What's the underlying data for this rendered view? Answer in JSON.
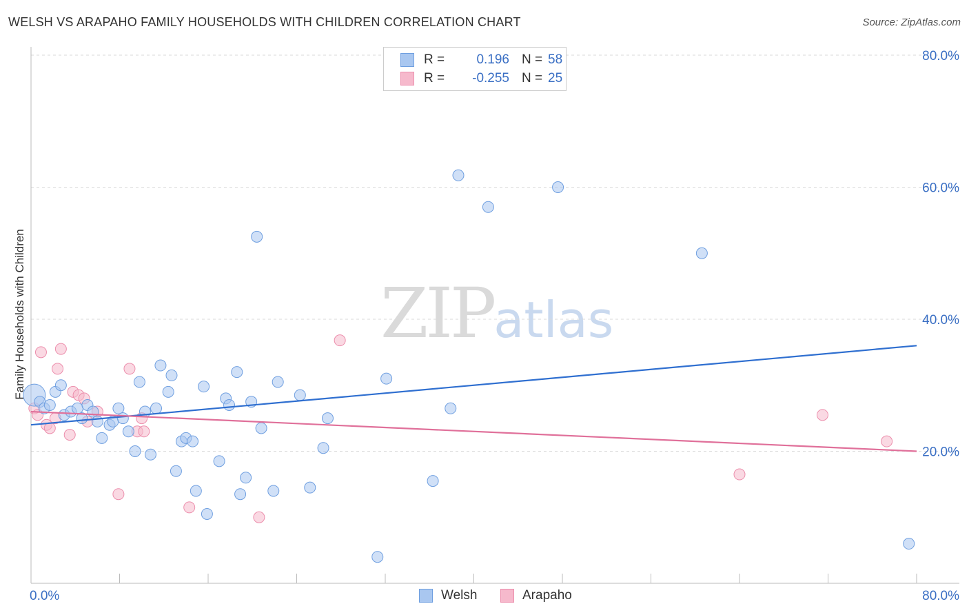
{
  "header": {
    "title": "WELSH VS ARAPAHO FAMILY HOUSEHOLDS WITH CHILDREN CORRELATION CHART",
    "source": "Source: ZipAtlas.com"
  },
  "watermark": {
    "zip": "ZIP",
    "atlas": "atlas"
  },
  "colors": {
    "welsh_fill": "#a9c7f0",
    "welsh_stroke": "#6f9fe0",
    "welsh_line": "#2f6fd0",
    "arapaho_fill": "#f6b9cc",
    "arapaho_stroke": "#ec8eac",
    "arapaho_line": "#e0709a",
    "axis_label": "#3a6fc4",
    "grid": "#d9d9d9"
  },
  "legend": {
    "rows": [
      {
        "r_label": "R = ",
        "r_value": "0.196",
        "n_label": "N = ",
        "n_value": "58"
      },
      {
        "r_label": "R = ",
        "r_value": "-0.255",
        "n_label": "N = ",
        "n_value": "25"
      }
    ]
  },
  "bottom_legend": {
    "welsh": "Welsh",
    "arapaho": "Arapaho"
  },
  "chart_data": {
    "type": "scatter",
    "title": "WELSH VS ARAPAHO FAMILY HOUSEHOLDS WITH CHILDREN CORRELATION CHART",
    "xlabel": "",
    "ylabel": "Family Households with Children",
    "xlim": [
      0,
      80
    ],
    "ylim": [
      0,
      80
    ],
    "x_tick_labels": [
      "0.0%",
      "80.0%"
    ],
    "y_tick_labels": [
      "20.0%",
      "40.0%",
      "60.0%",
      "80.0%"
    ],
    "y_ticks": [
      20,
      40,
      60,
      80
    ],
    "x_ticks": [
      0,
      8,
      16,
      24,
      32,
      40,
      48,
      56,
      64,
      72,
      80
    ],
    "grid": true,
    "legend_position": "top-center",
    "series": [
      {
        "name": "Welsh",
        "trend": {
          "x0": 0,
          "y0": 24.0,
          "x1": 80,
          "y1": 36.0
        },
        "points": [
          {
            "x": 0.3,
            "y": 28.5,
            "big": true
          },
          {
            "x": 0.8,
            "y": 27.5
          },
          {
            "x": 1.2,
            "y": 26.5
          },
          {
            "x": 1.7,
            "y": 27.0
          },
          {
            "x": 2.2,
            "y": 29.0
          },
          {
            "x": 2.7,
            "y": 30.0
          },
          {
            "x": 3.0,
            "y": 25.5
          },
          {
            "x": 3.6,
            "y": 26.0
          },
          {
            "x": 4.2,
            "y": 26.5
          },
          {
            "x": 4.6,
            "y": 25.0
          },
          {
            "x": 5.1,
            "y": 27.0
          },
          {
            "x": 5.6,
            "y": 26.0
          },
          {
            "x": 6.0,
            "y": 24.5
          },
          {
            "x": 6.4,
            "y": 22.0
          },
          {
            "x": 7.1,
            "y": 24.0
          },
          {
            "x": 7.4,
            "y": 24.5
          },
          {
            "x": 7.9,
            "y": 26.5
          },
          {
            "x": 8.3,
            "y": 25.0
          },
          {
            "x": 8.8,
            "y": 23.0
          },
          {
            "x": 9.4,
            "y": 20.0
          },
          {
            "x": 9.8,
            "y": 30.5
          },
          {
            "x": 10.3,
            "y": 26.0
          },
          {
            "x": 10.8,
            "y": 19.5
          },
          {
            "x": 11.3,
            "y": 26.5
          },
          {
            "x": 11.7,
            "y": 33.0
          },
          {
            "x": 12.4,
            "y": 29.0
          },
          {
            "x": 12.7,
            "y": 31.5
          },
          {
            "x": 13.1,
            "y": 17.0
          },
          {
            "x": 13.6,
            "y": 21.5
          },
          {
            "x": 14.0,
            "y": 22.0
          },
          {
            "x": 14.6,
            "y": 21.5
          },
          {
            "x": 14.9,
            "y": 14.0
          },
          {
            "x": 15.6,
            "y": 29.8
          },
          {
            "x": 15.9,
            "y": 10.5
          },
          {
            "x": 17.0,
            "y": 18.5
          },
          {
            "x": 17.6,
            "y": 28.0
          },
          {
            "x": 17.9,
            "y": 27.0
          },
          {
            "x": 18.6,
            "y": 32.0
          },
          {
            "x": 18.9,
            "y": 13.5
          },
          {
            "x": 19.4,
            "y": 16.0
          },
          {
            "x": 19.9,
            "y": 27.5
          },
          {
            "x": 20.4,
            "y": 52.5
          },
          {
            "x": 20.8,
            "y": 23.5
          },
          {
            "x": 21.9,
            "y": 14.0
          },
          {
            "x": 22.3,
            "y": 30.5
          },
          {
            "x": 24.3,
            "y": 28.5
          },
          {
            "x": 25.2,
            "y": 14.5
          },
          {
            "x": 26.4,
            "y": 20.5
          },
          {
            "x": 26.8,
            "y": 25.0
          },
          {
            "x": 31.3,
            "y": 4.0
          },
          {
            "x": 32.1,
            "y": 31.0
          },
          {
            "x": 36.3,
            "y": 15.5
          },
          {
            "x": 37.9,
            "y": 26.5
          },
          {
            "x": 38.6,
            "y": 61.8
          },
          {
            "x": 41.3,
            "y": 57.0
          },
          {
            "x": 47.6,
            "y": 60.0
          },
          {
            "x": 60.6,
            "y": 50.0
          },
          {
            "x": 79.3,
            "y": 6.0
          }
        ]
      },
      {
        "name": "Arapaho",
        "trend": {
          "x0": 0,
          "y0": 26.0,
          "x1": 80,
          "y1": 20.0
        },
        "points": [
          {
            "x": 0.3,
            "y": 26.5
          },
          {
            "x": 0.6,
            "y": 25.5
          },
          {
            "x": 0.9,
            "y": 35.0
          },
          {
            "x": 1.4,
            "y": 24.0
          },
          {
            "x": 1.7,
            "y": 23.5
          },
          {
            "x": 2.2,
            "y": 25.0
          },
          {
            "x": 2.4,
            "y": 32.5
          },
          {
            "x": 2.7,
            "y": 35.5
          },
          {
            "x": 3.5,
            "y": 22.5
          },
          {
            "x": 3.8,
            "y": 29.0
          },
          {
            "x": 4.3,
            "y": 28.5
          },
          {
            "x": 4.8,
            "y": 28.0
          },
          {
            "x": 5.1,
            "y": 24.5
          },
          {
            "x": 7.9,
            "y": 13.5
          },
          {
            "x": 8.9,
            "y": 32.5
          },
          {
            "x": 9.6,
            "y": 23.0
          },
          {
            "x": 10.0,
            "y": 25.0
          },
          {
            "x": 10.2,
            "y": 23.0
          },
          {
            "x": 14.3,
            "y": 11.5
          },
          {
            "x": 20.6,
            "y": 10.0
          },
          {
            "x": 27.9,
            "y": 36.8
          },
          {
            "x": 64.0,
            "y": 16.5
          },
          {
            "x": 71.5,
            "y": 25.5
          },
          {
            "x": 77.3,
            "y": 21.5
          },
          {
            "x": 6.0,
            "y": 26.0
          }
        ]
      }
    ]
  }
}
